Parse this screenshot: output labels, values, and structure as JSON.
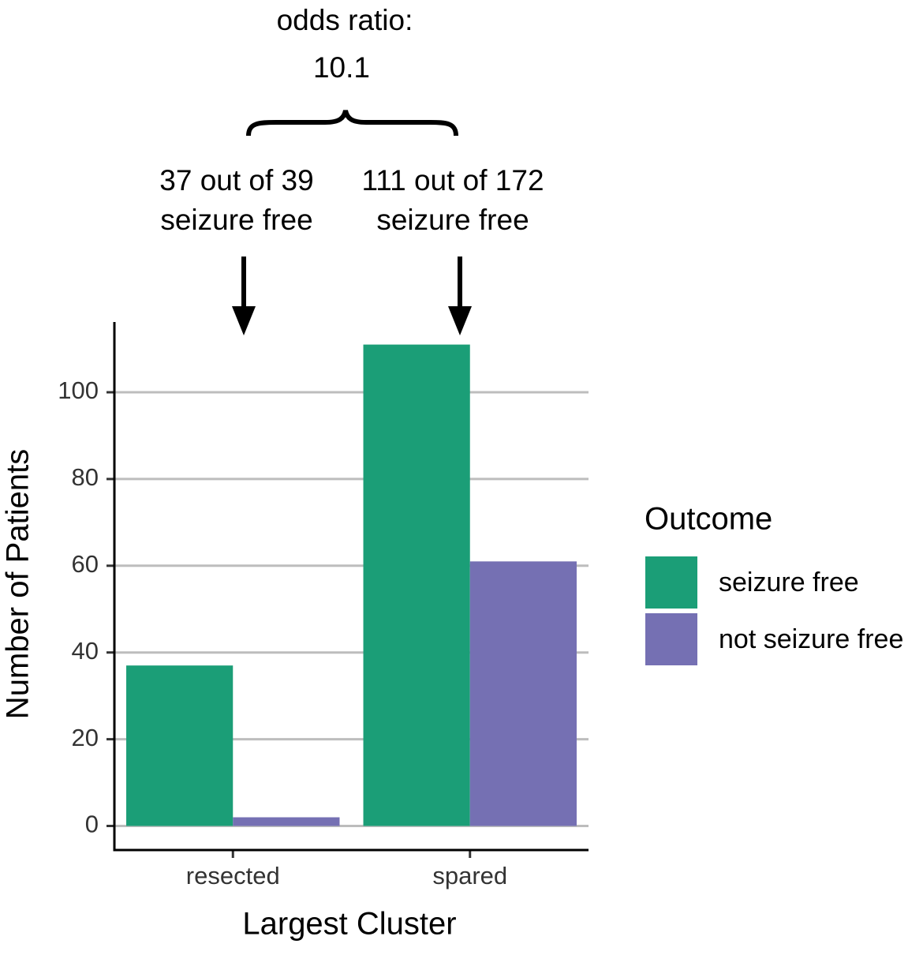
{
  "chart_data": {
    "type": "bar",
    "annotations": [
      "odds ratio:",
      "10.1",
      "37 out of 39",
      "seizure free",
      "111 out of 172",
      "seizure free"
    ],
    "x_label": "Largest Cluster",
    "y_label": "Number of Patients",
    "categories": [
      "resected",
      "spared"
    ],
    "series": [
      {
        "name": "seizure free",
        "color": "#1b9e77",
        "values": [
          37,
          111
        ]
      },
      {
        "name": "not seizure free",
        "color": "#7570b3",
        "values": [
          2,
          61
        ]
      }
    ],
    "legend_title": "Outcome",
    "legend": "right",
    "ylim": [
      -5.55,
      116.2
    ],
    "yticks": [
      0,
      20,
      40,
      60,
      80,
      100
    ],
    "grid": true
  }
}
